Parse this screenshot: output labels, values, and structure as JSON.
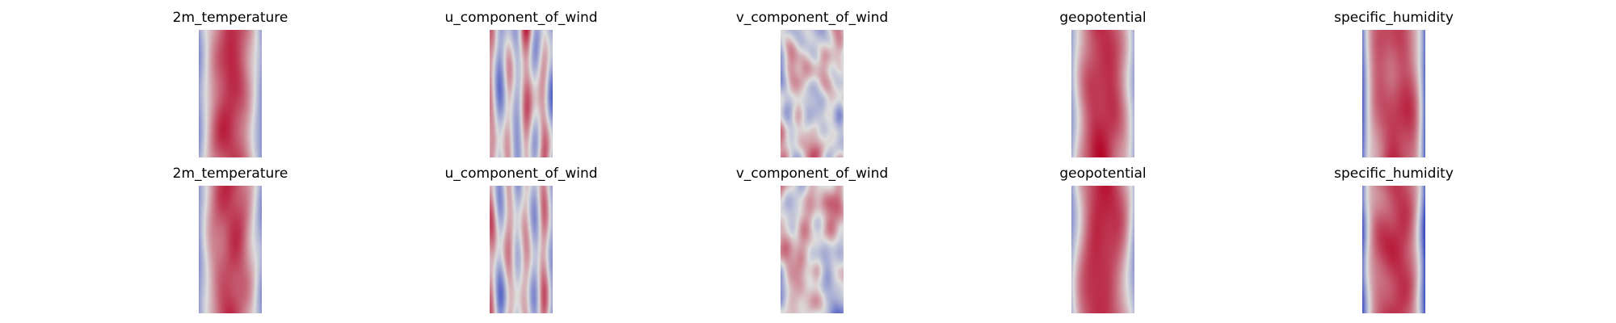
{
  "figure": {
    "rows": [
      {
        "panels": [
          {
            "title": "2m_temperature",
            "cmap": "coolwarm"
          },
          {
            "title": "u_component_of_wind",
            "cmap": "coolwarm"
          },
          {
            "title": "v_component_of_wind",
            "cmap": "coolwarm"
          },
          {
            "title": "geopotential",
            "cmap": "coolwarm"
          },
          {
            "title": "specific_humidity",
            "cmap": "coolwarm"
          }
        ]
      },
      {
        "panels": [
          {
            "title": "2m_temperature",
            "cmap": "coolwarm"
          },
          {
            "title": "u_component_of_wind",
            "cmap": "coolwarm"
          },
          {
            "title": "v_component_of_wind",
            "cmap": "coolwarm"
          },
          {
            "title": "geopotential",
            "cmap": "coolwarm"
          },
          {
            "title": "specific_humidity",
            "cmap": "coolwarm"
          }
        ]
      }
    ]
  },
  "chart_data": {
    "type": "heatmap",
    "layout": "2 rows x 5 columns of field maps",
    "axes": "off",
    "colormap": "coolwarm",
    "colormap_stops": [
      "#3b4cc0",
      "#dddddd",
      "#b40426"
    ],
    "panels": [
      {
        "row": 1,
        "col": 1,
        "title": "2m_temperature",
        "pattern": "warm band down the center, cool at both edges"
      },
      {
        "row": 1,
        "col": 2,
        "title": "u_component_of_wind",
        "pattern": "alternating vertical streaks, mostly near-neutral"
      },
      {
        "row": 1,
        "col": 3,
        "title": "v_component_of_wind",
        "pattern": "small-scale mixed warm/cool eddies"
      },
      {
        "row": 1,
        "col": 4,
        "title": "geopotential",
        "pattern": "warm band down the center, cool at both edges"
      },
      {
        "row": 1,
        "col": 5,
        "title": "specific_humidity",
        "pattern": "narrow warm core, strongly cool edges"
      },
      {
        "row": 2,
        "col": 1,
        "title": "2m_temperature",
        "pattern": "warm band down the center, cool at both edges"
      },
      {
        "row": 2,
        "col": 2,
        "title": "u_component_of_wind",
        "pattern": "alternating vertical streaks, mostly near-neutral"
      },
      {
        "row": 2,
        "col": 3,
        "title": "v_component_of_wind",
        "pattern": "small-scale mixed warm/cool eddies"
      },
      {
        "row": 2,
        "col": 4,
        "title": "geopotential",
        "pattern": "warm band down the center, cool at both edges"
      },
      {
        "row": 2,
        "col": 5,
        "title": "specific_humidity",
        "pattern": "narrow warm core, cool edges"
      }
    ]
  }
}
